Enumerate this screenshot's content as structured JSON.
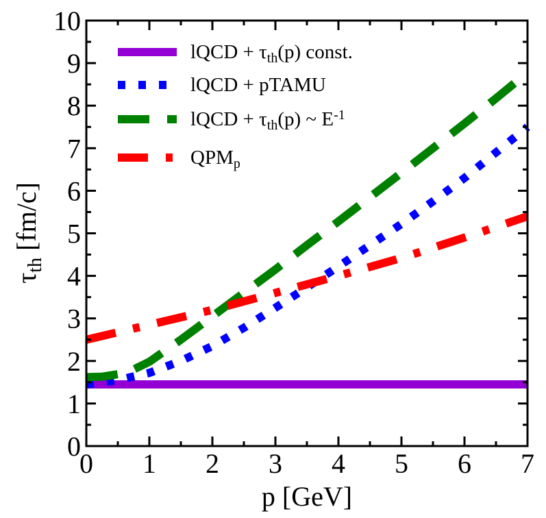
{
  "chart_data": {
    "type": "line",
    "xlabel": "p [GeV]",
    "ylabel": "τ",
    "ylabel_sub": "th",
    "ylabel_unit": " [fm/c]",
    "xlim": [
      0,
      7
    ],
    "ylim": [
      0,
      10
    ],
    "xticks": [
      0,
      1,
      2,
      3,
      4,
      5,
      6,
      7
    ],
    "yticks": [
      0,
      1,
      2,
      3,
      4,
      5,
      6,
      7,
      8,
      9,
      10
    ],
    "grid": false,
    "legend_position": "top-left",
    "series": [
      {
        "name": "lQCD + τth(p) const.",
        "legend": {
          "a": "lQCD + τ",
          "sub": "th",
          "b": "(p) const.",
          "sup": ""
        },
        "color": "#9400D3",
        "style": "solid",
        "x": [
          0,
          7
        ],
        "y": [
          1.45,
          1.45
        ]
      },
      {
        "name": "lQCD + pTAMU",
        "legend": {
          "a": "lQCD + pTAMU",
          "sub": "",
          "b": "",
          "sup": ""
        },
        "color": "#0000FF",
        "style": "dotted",
        "x": [
          0,
          0.5,
          1.0,
          1.5,
          2.0,
          2.5,
          3.0,
          3.5,
          4.0,
          4.5,
          5.0,
          5.5,
          6.0,
          6.5,
          7.0
        ],
        "y": [
          1.45,
          1.55,
          1.72,
          2.0,
          2.35,
          2.78,
          3.25,
          3.73,
          4.22,
          4.72,
          5.22,
          5.75,
          6.3,
          6.9,
          7.5
        ]
      },
      {
        "name": "lQCD + τth(p) ~ E-1",
        "legend": {
          "a": "lQCD +  τ",
          "sub": "th",
          "b": "(p) ~ E",
          "sup": "-1"
        },
        "color": "#008000",
        "style": "dashed",
        "x": [
          0,
          0.25,
          0.5,
          0.75,
          1.0,
          1.5,
          2.0,
          2.5,
          3.0,
          3.5,
          4.0,
          4.5,
          5.0,
          5.5,
          6.0,
          6.5,
          7.0
        ],
        "y": [
          1.62,
          1.63,
          1.69,
          1.8,
          1.98,
          2.5,
          3.05,
          3.6,
          4.15,
          4.72,
          5.28,
          5.85,
          6.42,
          7.0,
          7.58,
          8.17,
          8.78
        ]
      },
      {
        "name": "QPMp",
        "legend": {
          "a": "QPM",
          "sub": "p",
          "b": "",
          "sup": ""
        },
        "color": "#FF0000",
        "style": "dashdot",
        "x": [
          0,
          1.0,
          2.0,
          3.0,
          4.0,
          5.0,
          6.0,
          7.0
        ],
        "y": [
          2.5,
          2.85,
          3.2,
          3.6,
          4.0,
          4.42,
          4.9,
          5.4
        ]
      }
    ]
  }
}
